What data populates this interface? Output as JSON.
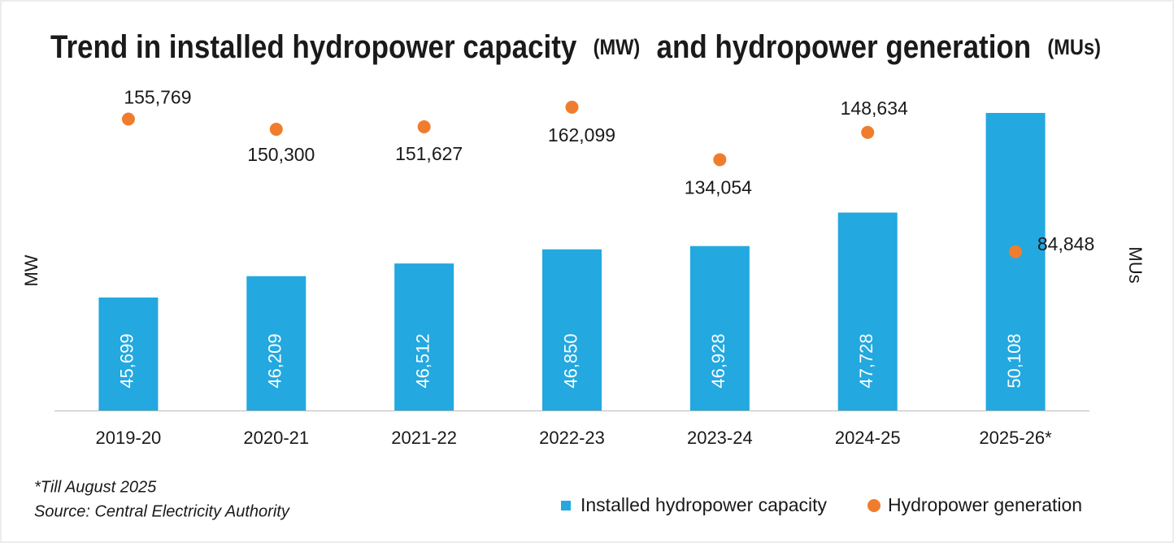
{
  "chart_data": {
    "type": "bar",
    "title": [
      "Trend in installed hydropower capacity",
      "(MW)",
      "and hydropower generation",
      "(MUs)"
    ],
    "y_label": "MW",
    "y2_label": "MUs",
    "categories": [
      "2019-20",
      "2020-21",
      "2021-22",
      "2022-23",
      "2023-24",
      "2024-25",
      "2025-26*"
    ],
    "series": [
      {
        "name": "Installed hydropower capacity",
        "type": "bar",
        "color": "#23a8e0",
        "values": [
          45699,
          46209,
          46512,
          46850,
          46928,
          47728,
          50108
        ],
        "value_labels": [
          "45,699",
          "46,209",
          "46,512",
          "46,850",
          "46,928",
          "47,728",
          "50,108"
        ]
      },
      {
        "name": "Hydropower generation",
        "type": "scatter",
        "axis": "y2",
        "color": "#ef7d2d",
        "values": [
          155769,
          150300,
          151627,
          162099,
          134054,
          148634,
          84848
        ],
        "value_labels": [
          "155,769",
          "150,300",
          "151,627",
          "162,099",
          "134,054",
          "148,634",
          "84,848"
        ]
      }
    ],
    "ylim": [
      43000,
      51000
    ],
    "y2lim": [
      0,
      179000
    ],
    "footnote": "*Till August 2025",
    "source": "Source: Central Electricity Authority"
  }
}
